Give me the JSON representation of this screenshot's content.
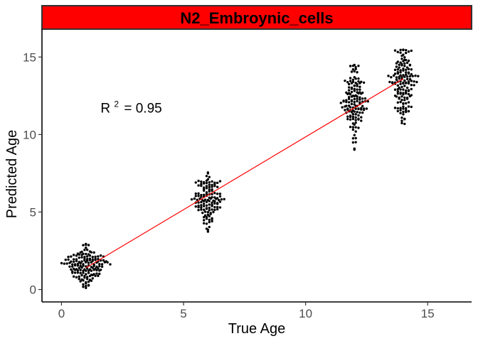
{
  "chart_data": {
    "type": "scatter",
    "title": "N2_Embroynic_cells",
    "xlabel": "True Age",
    "ylabel": "Predicted Age",
    "xlim": [
      -0.8,
      16.8
    ],
    "ylim": [
      -0.8,
      16.8
    ],
    "xticks": [
      0,
      5,
      10,
      15
    ],
    "yticks": [
      0,
      5,
      10,
      15
    ],
    "grid": false,
    "strip_color": "#ff0000",
    "fit_line_color": "#ff0000",
    "point_color": "#000000",
    "annotation": {
      "label": "R",
      "superscript": "2",
      "value_text": "= 0.95",
      "x": 1.6,
      "y": 11.7
    },
    "fit_line": {
      "x": [
        1,
        14
      ],
      "y": [
        1.4,
        13.6
      ]
    },
    "groups": [
      {
        "x": 1,
        "n": 150,
        "ymin": 0.1,
        "ymax": 3.2,
        "center": 1.5
      },
      {
        "x": 6,
        "n": 130,
        "ymin": 3.4,
        "ymax": 7.8,
        "center": 5.8
      },
      {
        "x": 12,
        "n": 140,
        "ymin": 8.9,
        "ymax": 14.5,
        "center": 12.2
      },
      {
        "x": 14,
        "n": 150,
        "ymin": 9.3,
        "ymax": 15.5,
        "center": 13.3
      }
    ]
  }
}
